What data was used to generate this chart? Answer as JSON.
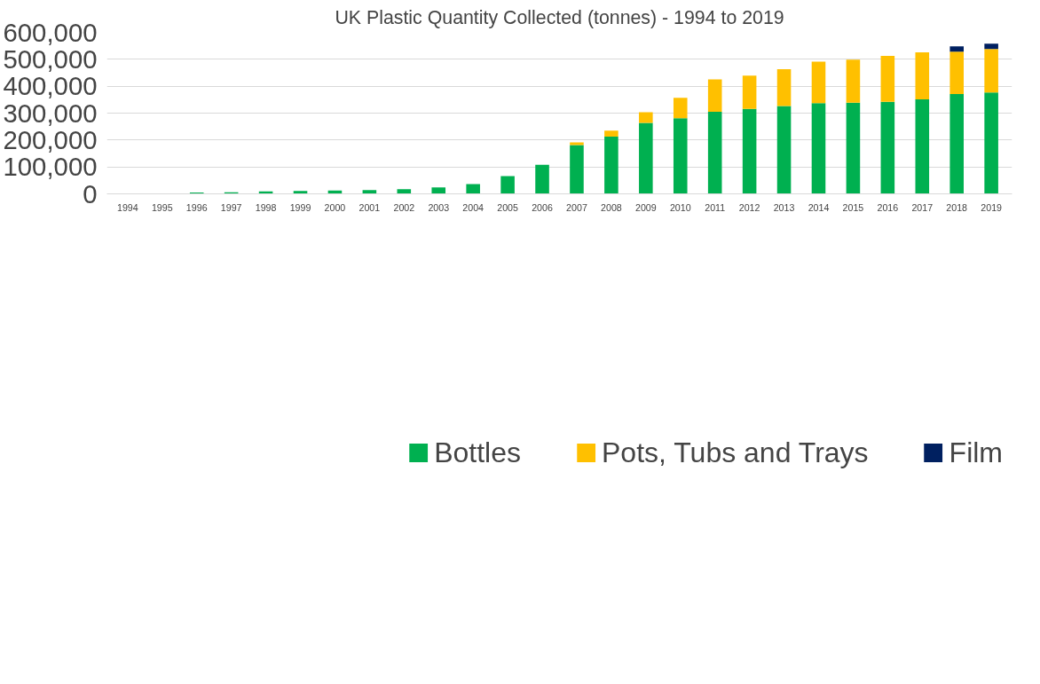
{
  "chart_data": {
    "type": "bar",
    "title": "UK Plastic Quantity Collected (tonnes) - 1994 to 2019",
    "stacked": true,
    "categories": [
      "1994",
      "1995",
      "1996",
      "1997",
      "1998",
      "1999",
      "2000",
      "2001",
      "2002",
      "2003",
      "2004",
      "2005",
      "2006",
      "2007",
      "2008",
      "2009",
      "2010",
      "2011",
      "2012",
      "2013",
      "2014",
      "2015",
      "2016",
      "2017",
      "2018",
      "2019"
    ],
    "series": [
      {
        "name": "Bottles",
        "color": "#00b050",
        "values": [
          0,
          2000,
          5000,
          6000,
          9000,
          11000,
          12000,
          14000,
          17000,
          24000,
          36000,
          66000,
          108000,
          181000,
          213000,
          264000,
          281000,
          305000,
          316000,
          326000,
          337000,
          339000,
          342000,
          351000,
          371000,
          377000
        ]
      },
      {
        "name": "Pots, Tubs and Trays",
        "color": "#ffc000",
        "values": [
          0,
          0,
          0,
          0,
          0,
          0,
          0,
          0,
          0,
          0,
          0,
          0,
          0,
          10000,
          22000,
          39000,
          76000,
          120000,
          123000,
          137000,
          154000,
          160000,
          171000,
          175000,
          157000,
          161000
        ]
      },
      {
        "name": "Film",
        "color": "#002060",
        "values": [
          0,
          0,
          0,
          0,
          0,
          0,
          0,
          0,
          0,
          0,
          0,
          0,
          0,
          0,
          0,
          0,
          0,
          0,
          0,
          0,
          0,
          0,
          0,
          0,
          20000,
          20000
        ]
      }
    ],
    "ylim": [
      0,
      600000
    ],
    "yticks": [
      {
        "value": 0,
        "label": "0"
      },
      {
        "value": 100000,
        "label": "100,000"
      },
      {
        "value": 200000,
        "label": "200,000"
      },
      {
        "value": 300000,
        "label": "300,000"
      },
      {
        "value": 400000,
        "label": "400,000"
      },
      {
        "value": 500000,
        "label": "500,000"
      },
      {
        "value": 600000,
        "label": "600,000"
      }
    ],
    "grid": "y",
    "legend": "bottom"
  }
}
